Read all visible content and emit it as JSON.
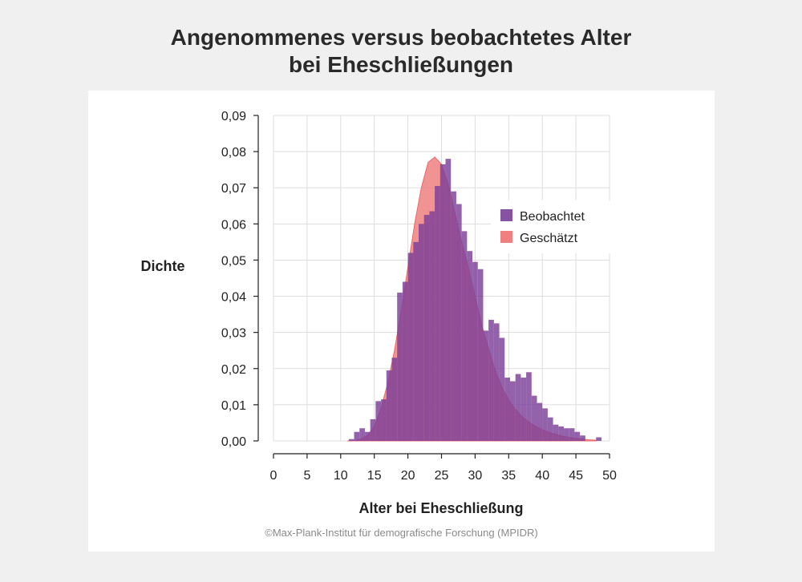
{
  "title_line1": "Angenommenes versus beobachtetes Alter",
  "title_line2": "bei Eheschließungen",
  "credit": "©Max-Plank-Institut für demografische Forschung (MPIDR)",
  "colors": {
    "background": "#f0f0f0",
    "panel": "#ffffff",
    "observed": "#7b3f98",
    "estimated": "#f08080",
    "grid": "#dddddd"
  },
  "chart_data": {
    "type": "bar",
    "xlabel": "Alter bei Eheschließung",
    "ylabel": "Dichte",
    "xlim": [
      0,
      50
    ],
    "ylim": [
      0,
      0.09
    ],
    "x_ticks": [
      0,
      5,
      10,
      15,
      20,
      25,
      30,
      35,
      40,
      45,
      50
    ],
    "x_tick_labels": [
      "0",
      "5",
      "10",
      "15",
      "20",
      "25",
      "30",
      "35",
      "40",
      "45",
      "50"
    ],
    "y_ticks": [
      0,
      0.01,
      0.02,
      0.03,
      0.04,
      0.05,
      0.06,
      0.07,
      0.08,
      0.09
    ],
    "y_tick_labels": [
      "0,00",
      "0,01",
      "0,02",
      "0,03",
      "0,04",
      "0,05",
      "0,06",
      "0,07",
      "0,08",
      "0,09"
    ],
    "grid": true,
    "legend_position": "right",
    "bin_width": 0.8,
    "series": [
      {
        "name": "Beobachtet",
        "kind": "histogram",
        "bin_start": [
          11.2,
          12.0,
          12.8,
          13.6,
          14.4,
          15.2,
          16.0,
          16.8,
          17.6,
          18.4,
          19.2,
          20.0,
          20.8,
          21.6,
          22.4,
          23.2,
          24.0,
          24.8,
          25.6,
          26.4,
          27.2,
          28.0,
          28.8,
          29.6,
          30.4,
          31.2,
          32.0,
          32.8,
          33.6,
          34.4,
          35.2,
          36.0,
          36.8,
          37.6,
          38.4,
          39.2,
          40.0,
          40.8,
          41.6,
          42.4,
          43.2,
          44.0,
          44.8,
          45.6,
          46.4,
          47.2,
          48.0
        ],
        "values": [
          0.0005,
          0.0025,
          0.0035,
          0.0025,
          0.006,
          0.011,
          0.0115,
          0.0195,
          0.023,
          0.041,
          0.044,
          0.052,
          0.055,
          0.06,
          0.0625,
          0.0635,
          0.0705,
          0.0765,
          0.078,
          0.069,
          0.0655,
          0.058,
          0.0525,
          0.0495,
          0.0475,
          0.0305,
          0.0335,
          0.0325,
          0.0285,
          0.0175,
          0.0165,
          0.0185,
          0.0175,
          0.019,
          0.0125,
          0.0105,
          0.009,
          0.0065,
          0.0045,
          0.004,
          0.0035,
          0.0035,
          0.0025,
          0.0015,
          0.0,
          0.0,
          0.001
        ]
      },
      {
        "name": "Geschätzt",
        "kind": "density",
        "x": [
          11,
          12,
          13,
          14,
          15,
          16,
          17,
          18,
          19,
          20,
          21,
          22,
          23,
          24,
          25,
          26,
          27,
          28,
          29,
          30,
          31,
          32,
          33,
          34,
          35,
          36,
          37,
          38,
          39,
          40,
          41,
          42,
          43,
          44,
          45,
          46,
          47,
          48
        ],
        "y": [
          0.0,
          0.0,
          0.0005,
          0.0015,
          0.004,
          0.009,
          0.016,
          0.025,
          0.036,
          0.048,
          0.06,
          0.07,
          0.077,
          0.0785,
          0.0765,
          0.071,
          0.063,
          0.055,
          0.048,
          0.04,
          0.032,
          0.0255,
          0.0195,
          0.0148,
          0.0113,
          0.0087,
          0.0067,
          0.0052,
          0.004,
          0.0031,
          0.0024,
          0.0018,
          0.0013,
          0.001,
          0.0007,
          0.0005,
          0.0003,
          0.0002
        ]
      }
    ]
  }
}
